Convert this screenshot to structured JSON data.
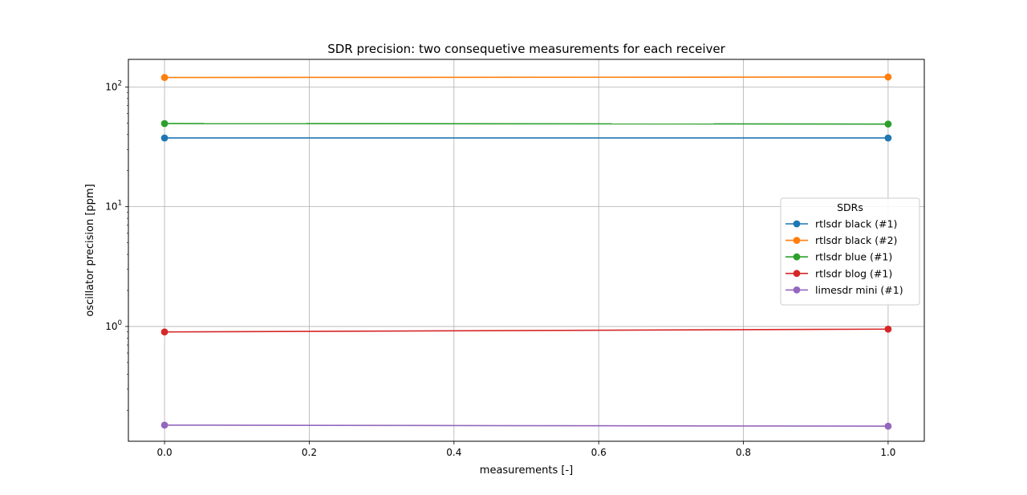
{
  "chart_data": {
    "type": "line",
    "title": "SDR precision: two consequetive measurements for each receiver",
    "xlabel": "measurements [-]",
    "ylabel": "oscillator precision [ppm]",
    "x": [
      0.0,
      1.0
    ],
    "xlim": [
      -0.05,
      1.05
    ],
    "ylim": [
      0.11,
      170
    ],
    "yscale": "log",
    "grid": true,
    "x_ticks": [
      {
        "value": 0.0,
        "label": "0.0"
      },
      {
        "value": 0.2,
        "label": "0.2"
      },
      {
        "value": 0.4,
        "label": "0.4"
      },
      {
        "value": 0.6,
        "label": "0.6"
      },
      {
        "value": 0.8,
        "label": "0.8"
      },
      {
        "value": 1.0,
        "label": "1.0"
      }
    ],
    "y_ticks": [
      {
        "value": 1,
        "base": "10",
        "exp": "0"
      },
      {
        "value": 10,
        "base": "10",
        "exp": "1"
      },
      {
        "value": 100,
        "base": "10",
        "exp": "2"
      }
    ],
    "legend": {
      "title": "SDRs",
      "placement": "center-right"
    },
    "series": [
      {
        "name": "rtlsdr black (#1)",
        "color": "#1f77b4",
        "values": [
          37.5,
          37.5
        ]
      },
      {
        "name": "rtlsdr black (#2)",
        "color": "#ff7f0e",
        "values": [
          120,
          121
        ]
      },
      {
        "name": "rtlsdr blue (#1)",
        "color": "#2ca02c",
        "values": [
          49.5,
          49.0
        ]
      },
      {
        "name": "rtlsdr blog (#1)",
        "color": "#d62728",
        "values": [
          0.9,
          0.95
        ]
      },
      {
        "name": "limesdr mini (#1)",
        "color": "#9467bd",
        "values": [
          0.15,
          0.147
        ]
      }
    ]
  }
}
